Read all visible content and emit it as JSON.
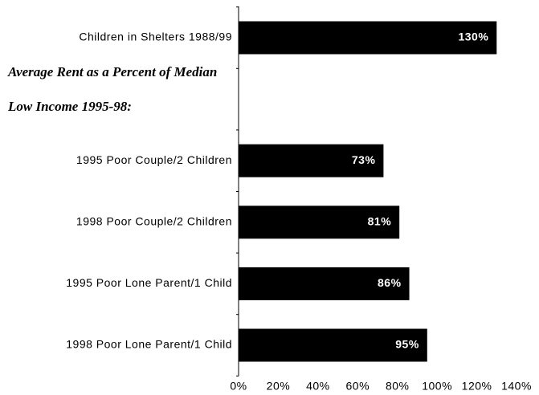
{
  "chart_data": {
    "type": "bar",
    "orientation": "horizontal",
    "categories": [
      "Children in Shelters 1988/99",
      "Average Rent as a Percent of Median Low Income 1995-98:",
      "1995 Poor Couple/2 Children",
      "1998 Poor Couple/2 Children",
      "1995 Poor Lone Parent/1 Child",
      "1998 Poor Lone Parent/1 Child"
    ],
    "values": [
      130,
      null,
      73,
      81,
      86,
      95
    ],
    "value_labels": [
      "130%",
      null,
      "73%",
      "81%",
      "86%",
      "95%"
    ],
    "color": "#000000",
    "xlim": [
      0,
      140
    ],
    "xticks": [
      {
        "value": 0,
        "label": "0%"
      },
      {
        "value": 20,
        "label": "20%"
      },
      {
        "value": 40,
        "label": "40%"
      },
      {
        "value": 60,
        "label": "60%"
      },
      {
        "value": 80,
        "label": "80%"
      },
      {
        "value": 100,
        "label": "100%"
      },
      {
        "value": 120,
        "label": "120%"
      },
      {
        "value": 140,
        "label": "140%"
      }
    ],
    "grid": false
  }
}
